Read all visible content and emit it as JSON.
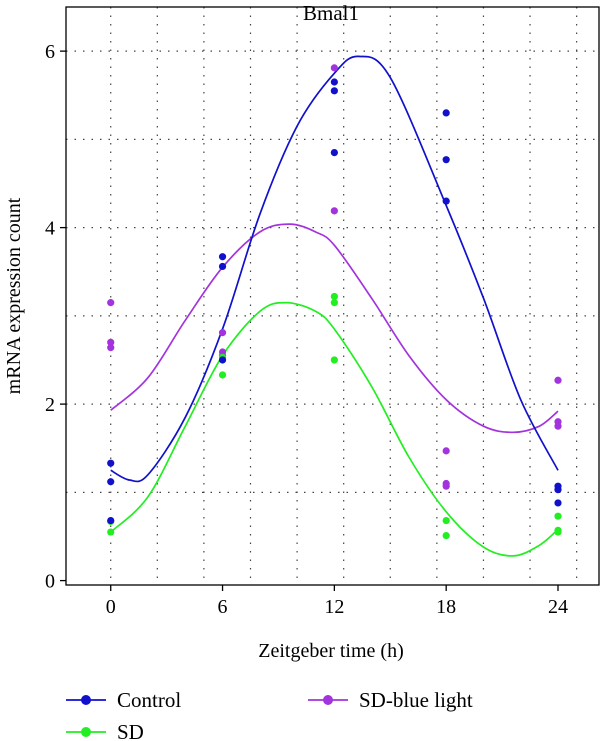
{
  "chart_data": {
    "type": "scatter",
    "title": "Bmal1",
    "xlabel": "Zeitgeber time (h)",
    "ylabel": "mRNA expression count",
    "xlim": [
      -2.4,
      26.2
    ],
    "ylim": [
      -0.05,
      6.5
    ],
    "xticks": [
      0,
      6,
      12,
      18,
      24
    ],
    "yticks": [
      0,
      2,
      4,
      6
    ],
    "xgrid": [
      0,
      2.5,
      5,
      7.5,
      10,
      12.5,
      15,
      17.5,
      20,
      22.5,
      25
    ],
    "ygrid": [
      1,
      2,
      3,
      4,
      5,
      6
    ],
    "grid": true,
    "legend_position": "bottom",
    "series": [
      {
        "name": "Control",
        "color": "#1111cc",
        "points": [
          [
            0,
            1.33
          ],
          [
            0,
            1.12
          ],
          [
            0,
            0.68
          ],
          [
            6,
            3.67
          ],
          [
            6,
            3.56
          ],
          [
            6,
            2.5
          ],
          [
            12,
            5.65
          ],
          [
            12,
            5.55
          ],
          [
            12,
            4.85
          ],
          [
            18,
            5.3
          ],
          [
            18,
            4.77
          ],
          [
            18,
            4.3
          ],
          [
            24,
            1.07
          ],
          [
            24,
            1.03
          ],
          [
            24,
            0.88
          ]
        ],
        "curve": [
          [
            0,
            1.25
          ],
          [
            1,
            1.14
          ],
          [
            2,
            1.2
          ],
          [
            4,
            1.85
          ],
          [
            6,
            2.85
          ],
          [
            8,
            4.15
          ],
          [
            10,
            5.15
          ],
          [
            12,
            5.75
          ],
          [
            13.3,
            5.94
          ],
          [
            15,
            5.7
          ],
          [
            18,
            4.25
          ],
          [
            20,
            3.2
          ],
          [
            22,
            2.05
          ],
          [
            24,
            1.25
          ]
        ]
      },
      {
        "name": "SD",
        "color": "#22ee22",
        "points": [
          [
            0,
            0.67
          ],
          [
            0,
            0.55
          ],
          [
            6,
            2.53
          ],
          [
            6,
            2.33
          ],
          [
            12,
            3.22
          ],
          [
            12,
            3.15
          ],
          [
            12,
            2.5
          ],
          [
            18,
            0.68
          ],
          [
            18,
            0.51
          ],
          [
            24,
            0.73
          ],
          [
            24,
            0.57
          ],
          [
            24,
            0.55
          ]
        ],
        "curve": [
          [
            0,
            0.55
          ],
          [
            2,
            0.95
          ],
          [
            4,
            1.75
          ],
          [
            6,
            2.55
          ],
          [
            8,
            3.05
          ],
          [
            9.4,
            3.15
          ],
          [
            11,
            3.05
          ],
          [
            12,
            2.85
          ],
          [
            14,
            2.2
          ],
          [
            16,
            1.4
          ],
          [
            18,
            0.78
          ],
          [
            20,
            0.38
          ],
          [
            21.6,
            0.28
          ],
          [
            23,
            0.4
          ],
          [
            24,
            0.58
          ]
        ]
      },
      {
        "name": "SD-blue light",
        "color": "#a333dd",
        "points": [
          [
            0,
            3.15
          ],
          [
            0,
            2.7
          ],
          [
            0,
            2.64
          ],
          [
            6,
            2.81
          ],
          [
            6,
            2.59
          ],
          [
            6,
            2.55
          ],
          [
            12,
            5.81
          ],
          [
            12,
            4.19
          ],
          [
            18,
            1.47
          ],
          [
            18,
            1.1
          ],
          [
            18,
            1.07
          ],
          [
            24,
            2.27
          ],
          [
            24,
            1.8
          ],
          [
            24,
            1.75
          ]
        ],
        "curve": [
          [
            0,
            1.93
          ],
          [
            2,
            2.3
          ],
          [
            4,
            2.95
          ],
          [
            6,
            3.55
          ],
          [
            8,
            3.95
          ],
          [
            9.6,
            4.04
          ],
          [
            11,
            3.95
          ],
          [
            12,
            3.8
          ],
          [
            14,
            3.2
          ],
          [
            16,
            2.55
          ],
          [
            18,
            2.05
          ],
          [
            20,
            1.75
          ],
          [
            21.6,
            1.68
          ],
          [
            23,
            1.75
          ],
          [
            24,
            1.92
          ]
        ]
      }
    ]
  }
}
